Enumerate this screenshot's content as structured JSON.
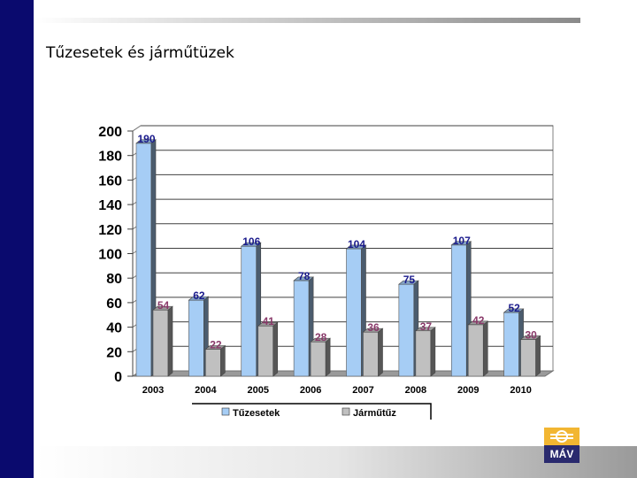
{
  "slide": {
    "title": "Tűzesetek és járműtüzek"
  },
  "logo": {
    "text": "MÁV"
  },
  "colors": {
    "series1": "#a6cdf5",
    "series2": "#c0c0c0",
    "label1": "#1a1a8c",
    "label2": "#8a3a6a",
    "frame": "#0a0a6e"
  },
  "chart_data": {
    "type": "bar",
    "title": "",
    "xlabel": "",
    "ylabel": "",
    "ylim": [
      0,
      200
    ],
    "yticks": [
      "0",
      "20",
      "40",
      "60",
      "80",
      "100",
      "120",
      "140",
      "160",
      "180",
      "200"
    ],
    "categories": [
      "2003",
      "2004",
      "2005",
      "2006",
      "2007",
      "2008",
      "2009",
      "2010"
    ],
    "series": [
      {
        "name": "Tűzesetek",
        "values": [
          190,
          62,
          106,
          78,
          104,
          75,
          107,
          52
        ]
      },
      {
        "name": "Járműtűz",
        "values": [
          54,
          22,
          41,
          28,
          36,
          37,
          42,
          30
        ]
      }
    ],
    "grid": true,
    "legend": "bottom"
  }
}
